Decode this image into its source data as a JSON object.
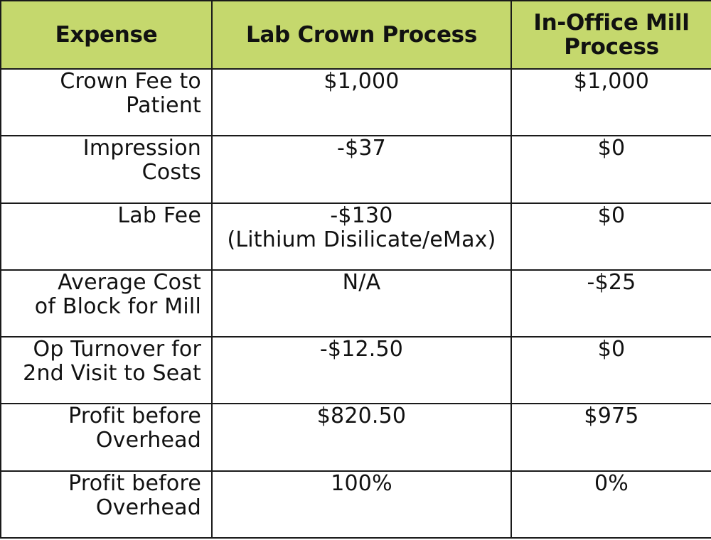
{
  "header": {
    "col1": "Expense",
    "col2": "Lab Crown Process",
    "col3_line1": "In-Office Mill",
    "col3_line2": "Process"
  },
  "rows": [
    {
      "label": [
        "Crown Fee to",
        "Patient"
      ],
      "lab": [
        "$1,000"
      ],
      "mill": "$1,000"
    },
    {
      "label": [
        "Impression",
        "Costs"
      ],
      "lab": [
        "-$37"
      ],
      "mill": "$0"
    },
    {
      "label": [
        "Lab Fee"
      ],
      "lab": [
        "-$130",
        "(Lithium Disilicate/eMax)"
      ],
      "mill": "$0"
    },
    {
      "label": [
        "Average Cost",
        "of Block for Mill"
      ],
      "lab": [
        "N/A"
      ],
      "mill": "-$25"
    },
    {
      "label": [
        "Op Turnover for",
        "2nd Visit to Seat"
      ],
      "lab": [
        "-$12.50"
      ],
      "mill": "$0"
    },
    {
      "label": [
        "Profit before",
        "Overhead"
      ],
      "lab": [
        "$820.50"
      ],
      "mill": "$975"
    },
    {
      "label": [
        "Profit before",
        "Overhead"
      ],
      "lab": [
        "100%"
      ],
      "mill": "0%"
    }
  ],
  "colors": {
    "header_bg": "#c5d86d",
    "border": "#1a1a1a",
    "text": "#111111"
  }
}
